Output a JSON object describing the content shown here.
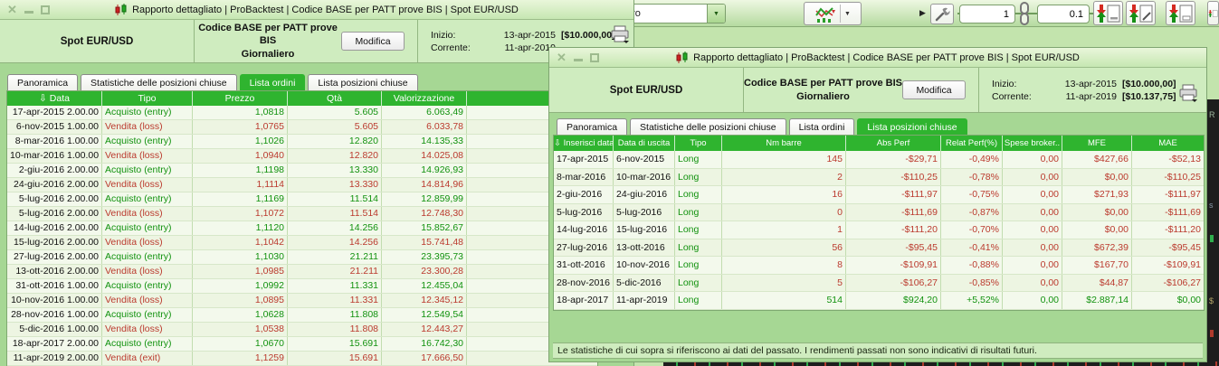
{
  "icons": {
    "sort_desc": "⇩",
    "dropdown_arrow": "▼",
    "play_arrow": "▶"
  },
  "toolbar": {
    "timeframe_partial": "aliero",
    "quantity_value": "1",
    "step_value": "0.1"
  },
  "background": {
    "fragments": [
      "R",
      "s",
      "$"
    ]
  },
  "left_window": {
    "title": "Rapporto dettagliato | ProBacktest | Codice BASE per PATT prove BIS | Spot EUR/USD",
    "instrument": "Spot EUR/USD",
    "code_name": "Codice BASE per PATT prove BIS",
    "timeframe": "Giornaliero",
    "modify_label": "Modifica",
    "inizio_label": "Inizio:",
    "inizio_date": "13-apr-2015",
    "inizio_value": "[$10.000,00]",
    "corrente_label": "Corrente:",
    "corrente_date": "11-apr-2019",
    "tabs": [
      {
        "label": "Panoramica",
        "active": false
      },
      {
        "label": "Statistiche delle posizioni chiuse",
        "active": false
      },
      {
        "label": "Lista ordini",
        "active": true
      },
      {
        "label": "Lista posizioni chiuse",
        "active": false
      }
    ],
    "orders_table": {
      "columns": [
        "Data",
        "Tipo",
        "Prezzo",
        "Qtà",
        "Valorizzazione",
        ""
      ],
      "rows": [
        {
          "date": "17-apr-2015 2.00.00",
          "type": "Acquisto (entry)",
          "price": "1,0818",
          "qty": "5.605",
          "value": "6.063,49",
          "tone": "pos"
        },
        {
          "date": "6-nov-2015 1.00.00",
          "type": "Vendita (loss)",
          "price": "1,0765",
          "qty": "5.605",
          "value": "6.033,78",
          "tone": "neg"
        },
        {
          "date": "8-mar-2016 1.00.00",
          "type": "Acquisto (entry)",
          "price": "1,1026",
          "qty": "12.820",
          "value": "14.135,33",
          "tone": "pos"
        },
        {
          "date": "10-mar-2016 1.00.00",
          "type": "Vendita (loss)",
          "price": "1,0940",
          "qty": "12.820",
          "value": "14.025,08",
          "tone": "neg"
        },
        {
          "date": "2-giu-2016 2.00.00",
          "type": "Acquisto (entry)",
          "price": "1,1198",
          "qty": "13.330",
          "value": "14.926,93",
          "tone": "pos"
        },
        {
          "date": "24-giu-2016 2.00.00",
          "type": "Vendita (loss)",
          "price": "1,1114",
          "qty": "13.330",
          "value": "14.814,96",
          "tone": "neg"
        },
        {
          "date": "5-lug-2016 2.00.00",
          "type": "Acquisto (entry)",
          "price": "1,1169",
          "qty": "11.514",
          "value": "12.859,99",
          "tone": "pos"
        },
        {
          "date": "5-lug-2016 2.00.00",
          "type": "Vendita (loss)",
          "price": "1,1072",
          "qty": "11.514",
          "value": "12.748,30",
          "tone": "neg"
        },
        {
          "date": "14-lug-2016 2.00.00",
          "type": "Acquisto (entry)",
          "price": "1,1120",
          "qty": "14.256",
          "value": "15.852,67",
          "tone": "pos"
        },
        {
          "date": "15-lug-2016 2.00.00",
          "type": "Vendita (loss)",
          "price": "1,1042",
          "qty": "14.256",
          "value": "15.741,48",
          "tone": "neg"
        },
        {
          "date": "27-lug-2016 2.00.00",
          "type": "Acquisto (entry)",
          "price": "1,1030",
          "qty": "21.211",
          "value": "23.395,73",
          "tone": "pos"
        },
        {
          "date": "13-ott-2016 2.00.00",
          "type": "Vendita (loss)",
          "price": "1,0985",
          "qty": "21.211",
          "value": "23.300,28",
          "tone": "neg"
        },
        {
          "date": "31-ott-2016 1.00.00",
          "type": "Acquisto (entry)",
          "price": "1,0992",
          "qty": "11.331",
          "value": "12.455,04",
          "tone": "pos"
        },
        {
          "date": "10-nov-2016 1.00.00",
          "type": "Vendita (loss)",
          "price": "1,0895",
          "qty": "11.331",
          "value": "12.345,12",
          "tone": "neg"
        },
        {
          "date": "28-nov-2016 1.00.00",
          "type": "Acquisto (entry)",
          "price": "1,0628",
          "qty": "11.808",
          "value": "12.549,54",
          "tone": "pos"
        },
        {
          "date": "5-dic-2016 1.00.00",
          "type": "Vendita (loss)",
          "price": "1,0538",
          "qty": "11.808",
          "value": "12.443,27",
          "tone": "neg"
        },
        {
          "date": "18-apr-2017 2.00.00",
          "type": "Acquisto (entry)",
          "price": "1,0670",
          "qty": "15.691",
          "value": "16.742,30",
          "tone": "pos"
        },
        {
          "date": "11-apr-2019 2.00.00",
          "type": "Vendita (exit)",
          "price": "1,1259",
          "qty": "15.691",
          "value": "17.666,50",
          "tone": "neg"
        }
      ]
    }
  },
  "right_window": {
    "title": "Rapporto dettagliato | ProBacktest | Codice BASE per PATT prove BIS | Spot EUR/USD",
    "instrument": "Spot EUR/USD",
    "code_name": "Codice BASE per PATT prove BIS",
    "timeframe": "Giornaliero",
    "modify_label": "Modifica",
    "inizio_label": "Inizio:",
    "inizio_date": "13-apr-2015",
    "inizio_value": "[$10.000,00]",
    "corrente_label": "Corrente:",
    "corrente_date": "11-apr-2019",
    "corrente_value": "[$10.137,75]",
    "tabs": [
      {
        "label": "Panoramica",
        "active": false
      },
      {
        "label": "Statistiche delle posizioni chiuse",
        "active": false
      },
      {
        "label": "Lista ordini",
        "active": false
      },
      {
        "label": "Lista posizioni chiuse",
        "active": true
      }
    ],
    "positions_table": {
      "columns": [
        "Inserisci data",
        "Data di uscita",
        "Tipo",
        "Nm barre",
        "Abs Perf",
        "Relat Perf(%)",
        "Spese broker..",
        "MFE",
        "MAE"
      ],
      "rows": [
        {
          "entry_date": "17-apr-2015",
          "exit_date": "6-nov-2015",
          "type": "Long",
          "bars": "145",
          "abs_perf": "-$29,71",
          "rel_perf": "-0,49%",
          "fees": "0,00",
          "mfe": "$427,66",
          "mae": "-$52,13",
          "tone": "neg"
        },
        {
          "entry_date": "8-mar-2016",
          "exit_date": "10-mar-2016",
          "type": "Long",
          "bars": "2",
          "abs_perf": "-$110,25",
          "rel_perf": "-0,78%",
          "fees": "0,00",
          "mfe": "$0,00",
          "mae": "-$110,25",
          "tone": "neg"
        },
        {
          "entry_date": "2-giu-2016",
          "exit_date": "24-giu-2016",
          "type": "Long",
          "bars": "16",
          "abs_perf": "-$111,97",
          "rel_perf": "-0,75%",
          "fees": "0,00",
          "mfe": "$271,93",
          "mae": "-$111,97",
          "tone": "neg"
        },
        {
          "entry_date": "5-lug-2016",
          "exit_date": "5-lug-2016",
          "type": "Long",
          "bars": "0",
          "abs_perf": "-$111,69",
          "rel_perf": "-0,87%",
          "fees": "0,00",
          "mfe": "$0,00",
          "mae": "-$111,69",
          "tone": "neg"
        },
        {
          "entry_date": "14-lug-2016",
          "exit_date": "15-lug-2016",
          "type": "Long",
          "bars": "1",
          "abs_perf": "-$111,20",
          "rel_perf": "-0,70%",
          "fees": "0,00",
          "mfe": "$0,00",
          "mae": "-$111,20",
          "tone": "neg"
        },
        {
          "entry_date": "27-lug-2016",
          "exit_date": "13-ott-2016",
          "type": "Long",
          "bars": "56",
          "abs_perf": "-$95,45",
          "rel_perf": "-0,41%",
          "fees": "0,00",
          "mfe": "$672,39",
          "mae": "-$95,45",
          "tone": "neg"
        },
        {
          "entry_date": "31-ott-2016",
          "exit_date": "10-nov-2016",
          "type": "Long",
          "bars": "8",
          "abs_perf": "-$109,91",
          "rel_perf": "-0,88%",
          "fees": "0,00",
          "mfe": "$167,70",
          "mae": "-$109,91",
          "tone": "neg"
        },
        {
          "entry_date": "28-nov-2016",
          "exit_date": "5-dic-2016",
          "type": "Long",
          "bars": "5",
          "abs_perf": "-$106,27",
          "rel_perf": "-0,85%",
          "fees": "0,00",
          "mfe": "$44,87",
          "mae": "-$106,27",
          "tone": "neg"
        },
        {
          "entry_date": "18-apr-2017",
          "exit_date": "11-apr-2019",
          "type": "Long",
          "bars": "514",
          "abs_perf": "$924,20",
          "rel_perf": "+5,52%",
          "fees": "0,00",
          "mfe": "$2.887,14",
          "mae": "$0,00",
          "tone": "pos"
        }
      ]
    },
    "disclaimer": "Le statistiche di cui sopra si riferiscono ai dati del passato. I rendimenti passati non sono indicativi di risultati futuri."
  }
}
